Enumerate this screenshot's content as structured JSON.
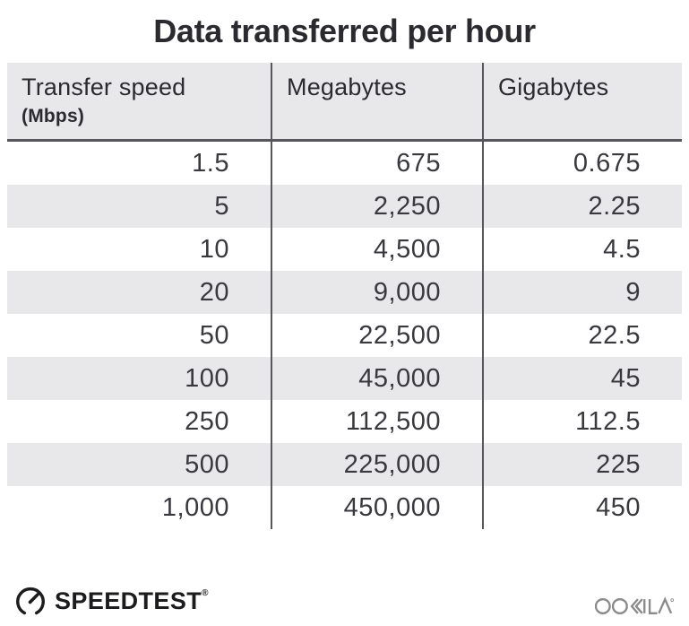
{
  "title": "Data transferred per hour",
  "table": {
    "columns": [
      {
        "label": "Transfer speed",
        "sublabel": "(Mbps)"
      },
      {
        "label": "Megabytes",
        "sublabel": ""
      },
      {
        "label": "Gigabytes",
        "sublabel": ""
      }
    ],
    "rows": [
      [
        "1.5",
        "675",
        "0.675"
      ],
      [
        "5",
        "2,250",
        "2.25"
      ],
      [
        "10",
        "4,500",
        "4.5"
      ],
      [
        "20",
        "9,000",
        "9"
      ],
      [
        "50",
        "22,500",
        "22.5"
      ],
      [
        "100",
        "45,000",
        "45"
      ],
      [
        "250",
        "112,500",
        "112.5"
      ],
      [
        "500",
        "225,000",
        "225"
      ],
      [
        "1,000",
        "450,000",
        "450"
      ]
    ]
  },
  "footer": {
    "speedtest_label": "SPEEDTEST",
    "speedtest_reg": "®",
    "ookla_label": "OOKLA"
  },
  "colors": {
    "row_stripe": "#e8e7ea",
    "header_bg": "#e8e7ea",
    "rule_dark": "#57565a",
    "text_dark": "#2b2a2e",
    "ookla_gray": "#8a8a8a"
  },
  "chart_data": {
    "type": "table",
    "title": "Data transferred per hour",
    "columns": [
      "Transfer speed (Mbps)",
      "Megabytes",
      "Gigabytes"
    ],
    "rows": [
      [
        1.5,
        675,
        0.675
      ],
      [
        5,
        2250,
        2.25
      ],
      [
        10,
        4500,
        4.5
      ],
      [
        20,
        9000,
        9
      ],
      [
        50,
        22500,
        22.5
      ],
      [
        100,
        45000,
        45
      ],
      [
        250,
        112500,
        112.5
      ],
      [
        500,
        225000,
        225
      ],
      [
        1000,
        450000,
        450
      ]
    ]
  }
}
